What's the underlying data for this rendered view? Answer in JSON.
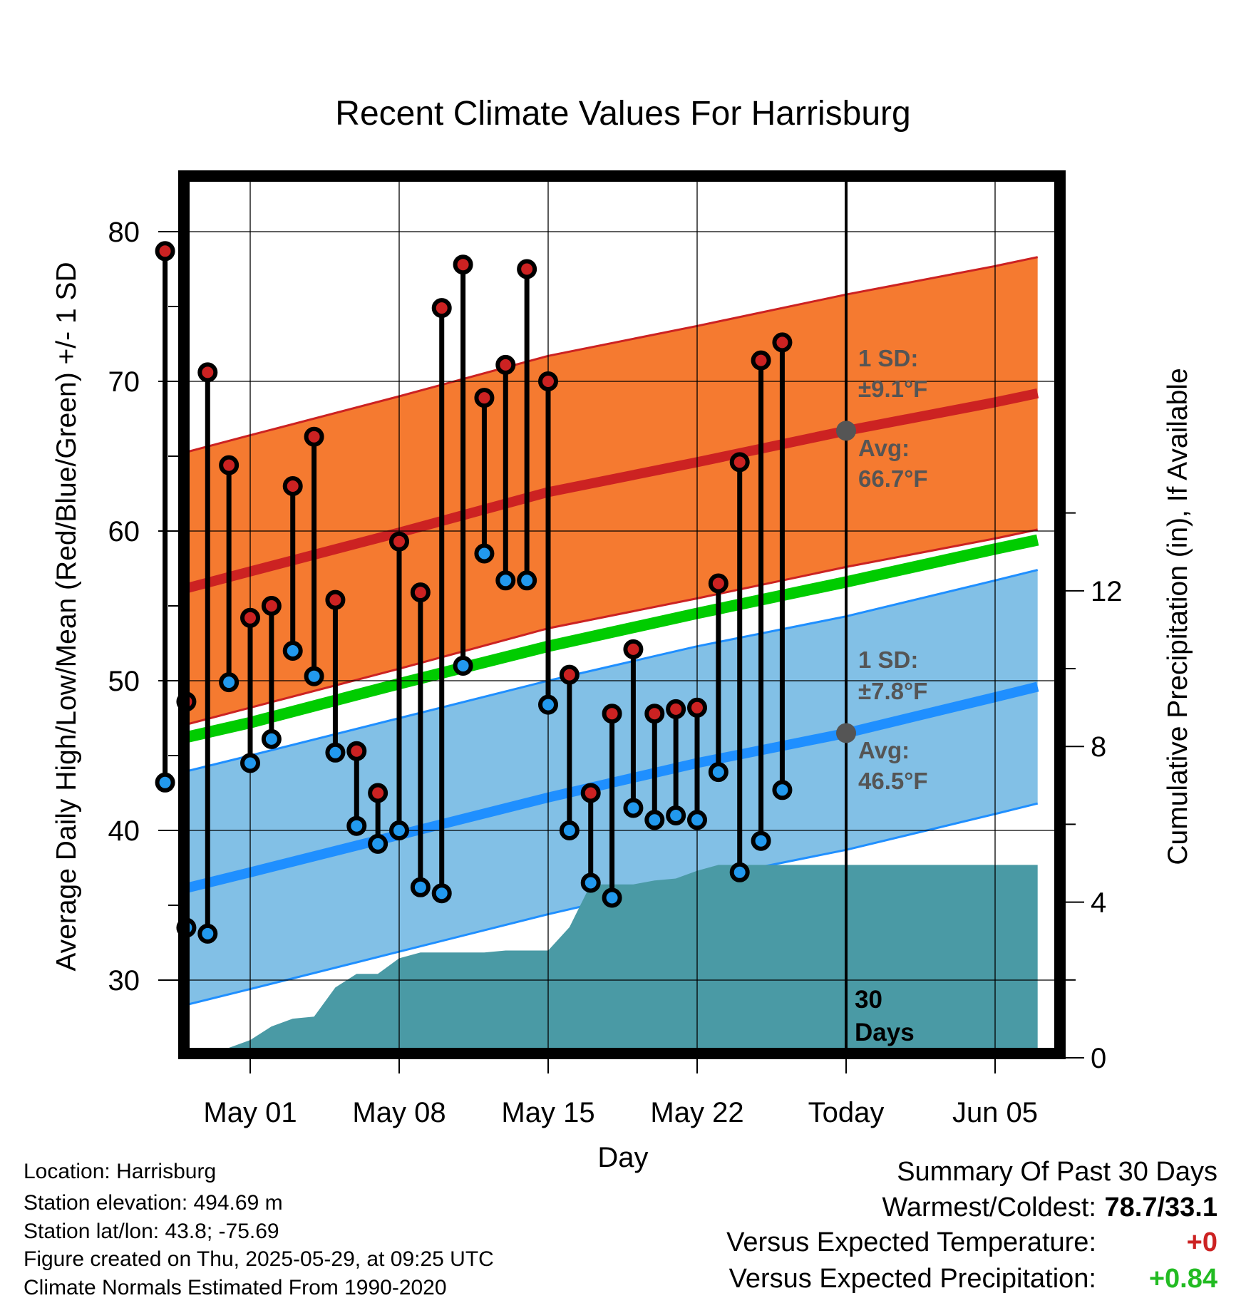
{
  "chart_data": {
    "type": "line",
    "title": "Recent Climate Values For Harrisburg",
    "xlabel": "Day",
    "ylabel": "Average Daily High/Low/Mean (Red/Blue/Green) +/- 1 SD",
    "y2label": "Cumulative Precipitation (in), If Available",
    "x_tick_labels": [
      "May 01",
      "May 08",
      "May 15",
      "May 22",
      "Today",
      "Jun 05"
    ],
    "y_ticks": [
      30,
      40,
      50,
      60,
      70,
      80
    ],
    "y2_ticks": [
      0,
      4,
      8,
      12
    ],
    "ylim": [
      25,
      84
    ],
    "y2lim": [
      0,
      22.4
    ],
    "grid": true,
    "x_range_days": [
      "Apr 27",
      "Jun 07"
    ],
    "today": "May 29",
    "period_label": "30\nDays",
    "normals": {
      "x": [
        "Apr 27",
        "May 01",
        "May 08",
        "May 15",
        "May 22",
        "May 29",
        "Jun 05",
        "Jun 07"
      ],
      "high_avg": [
        55.8,
        57.3,
        59.9,
        62.6,
        64.6,
        66.7,
        68.6,
        69.2
      ],
      "high_sd": 9.1,
      "low_avg": [
        35.8,
        37.2,
        39.7,
        42.2,
        44.5,
        46.5,
        48.9,
        49.6
      ],
      "low_sd": 7.8,
      "mean_avg": [
        45.9,
        47.2,
        49.8,
        52.3,
        54.5,
        56.6,
        58.8,
        59.4
      ]
    },
    "annotations": [
      {
        "label_sd": "1 SD:",
        "label_sd_val": "±9.1°F",
        "label_avg": "Avg:",
        "label_avg_val": "66.7°F"
      },
      {
        "label_sd": "1 SD:",
        "label_sd_val": "±7.8°F",
        "label_avg": "Avg:",
        "label_avg_val": "46.5°F"
      }
    ],
    "series": [
      {
        "name": "High",
        "x": [
          "Apr 27",
          "Apr 28",
          "Apr 29",
          "Apr 30",
          "May 01",
          "May 02",
          "May 03",
          "May 04",
          "May 05",
          "May 06",
          "May 07",
          "May 08",
          "May 09",
          "May 10",
          "May 11",
          "May 12",
          "May 13",
          "May 14",
          "May 15",
          "May 16",
          "May 17",
          "May 18",
          "May 19",
          "May 20",
          "May 21",
          "May 22",
          "May 23",
          "May 24",
          "May 25",
          "May 26",
          "May 27",
          "May 28"
        ],
        "values": [
          78.7,
          48.6,
          70.6,
          64.4,
          54.2,
          55.0,
          63.0,
          66.3,
          55.4,
          45.3,
          42.5,
          59.3,
          55.9,
          74.9,
          77.8,
          68.9,
          71.1,
          77.5,
          70.0,
          50.4,
          42.5,
          47.8,
          52.1,
          47.8,
          48.1,
          48.2,
          56.5,
          64.6,
          71.4,
          72.6,
          null,
          null
        ]
      },
      {
        "name": "Low",
        "x": [
          "Apr 27",
          "Apr 28",
          "Apr 29",
          "Apr 30",
          "May 01",
          "May 02",
          "May 03",
          "May 04",
          "May 05",
          "May 06",
          "May 07",
          "May 08",
          "May 09",
          "May 10",
          "May 11",
          "May 12",
          "May 13",
          "May 14",
          "May 15",
          "May 16",
          "May 17",
          "May 18",
          "May 19",
          "May 20",
          "May 21",
          "May 22",
          "May 23",
          "May 24",
          "May 25",
          "May 26",
          "May 27",
          "May 28"
        ],
        "values": [
          43.2,
          33.5,
          33.1,
          49.9,
          44.5,
          46.1,
          52.0,
          50.3,
          45.2,
          40.3,
          39.1,
          40.0,
          36.2,
          35.8,
          51.0,
          58.5,
          56.7,
          56.7,
          48.4,
          40.0,
          36.5,
          35.5,
          41.5,
          40.7,
          41.0,
          40.7,
          43.9,
          37.2,
          39.3,
          42.7,
          null,
          null
        ]
      }
    ],
    "precipitation": {
      "x": [
        "Apr 29",
        "Apr 30",
        "May 01",
        "May 02",
        "May 03",
        "May 04",
        "May 05",
        "May 06",
        "May 07",
        "May 08",
        "May 09",
        "May 10",
        "May 11",
        "May 12",
        "May 13",
        "May 14",
        "May 15",
        "May 16",
        "May 17",
        "May 18",
        "May 19",
        "May 20",
        "May 21",
        "May 22",
        "May 23",
        "May 24",
        "May 25",
        "May 26",
        "May 27",
        "May 28",
        "May 29",
        "Jun 07"
      ],
      "values": [
        0.0,
        0.0,
        0.2,
        0.55,
        0.75,
        0.8,
        1.55,
        1.9,
        1.9,
        2.3,
        2.45,
        2.45,
        2.45,
        2.45,
        2.5,
        2.5,
        2.5,
        3.1,
        4.2,
        4.2,
        4.2,
        4.3,
        4.35,
        4.55,
        4.7,
        4.7,
        4.7,
        4.7,
        4.7,
        4.7,
        4.7,
        4.7
      ]
    },
    "colors": {
      "high_band": "#f57a30",
      "high_line": "#cc2222",
      "low_band": "#82c0e6",
      "low_line": "#1f8fff",
      "mean_line": "#00cc00",
      "precip_fill": "#4a9aa5",
      "high_marker": "#cc2222",
      "low_marker": "#2299ee",
      "annotation_text": "#555555",
      "today_marker": "#555555"
    }
  },
  "footer": {
    "location": "Location: Harrisburg",
    "elevation": "Station elevation: 494.69 m",
    "latlon": "Station lat/lon: 43.8; -75.69",
    "created": "Figure created on Thu, 2025-05-29, at 09:25 UTC",
    "normals": "Climate Normals Estimated From 1990-2020"
  },
  "summary": {
    "title": "Summary Of Past 30 Days",
    "warm_cold_label": "Warmest/Coldest:",
    "warm_cold_value": "78.7/33.1",
    "temp_label": "Versus Expected Temperature:",
    "temp_value": "+0",
    "temp_color": "#cc2222",
    "precip_label": "Versus Expected Precipitation:",
    "precip_value": "+0.84",
    "precip_color": "#22bb22"
  }
}
